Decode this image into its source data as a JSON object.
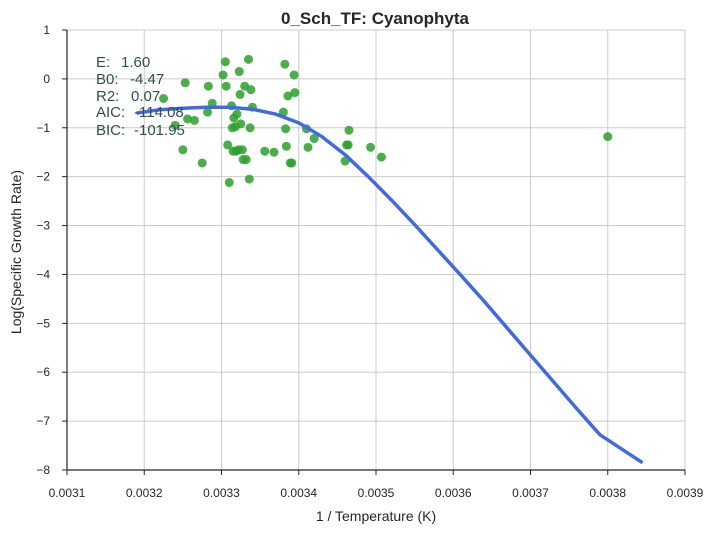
{
  "chart_data": {
    "type": "scatter",
    "title": "0_Sch_TF: Cyanophyta",
    "xlabel": "1 / Temperature (K)",
    "ylabel": "Log(Specific Growth Rate)",
    "xlim": [
      0.0031,
      0.0039
    ],
    "ylim": [
      -8,
      1
    ],
    "xticks": [
      "0.0031",
      "0.0032",
      "0.0033",
      "0.0034",
      "0.0035",
      "0.0036",
      "0.0037",
      "0.0038",
      "0.0039"
    ],
    "yticks": [
      "1",
      "0",
      "−1",
      "−2",
      "−3",
      "−4",
      "−5",
      "−6",
      "−7",
      "−8"
    ],
    "grid": true,
    "annotations": [
      {
        "label": "E:",
        "value": "1.60"
      },
      {
        "label": "B0:",
        "value": "-4.47"
      },
      {
        "label": "R2:",
        "value": "0.07"
      },
      {
        "label": "AIC:",
        "value": "-114.08"
      },
      {
        "label": "BIC:",
        "value": "-101.95"
      }
    ],
    "series": [
      {
        "kind": "scatter",
        "color": "#2ca02c",
        "points": [
          [
            0.003225,
            -0.4
          ],
          [
            0.00324,
            -0.95
          ],
          [
            0.00325,
            -1.45
          ],
          [
            0.003253,
            -0.08
          ],
          [
            0.003256,
            -0.82
          ],
          [
            0.003265,
            -0.85
          ],
          [
            0.003275,
            -1.72
          ],
          [
            0.003282,
            -0.68
          ],
          [
            0.003283,
            -0.15
          ],
          [
            0.003288,
            -0.5
          ],
          [
            0.003302,
            0.08
          ],
          [
            0.003305,
            0.35
          ],
          [
            0.003306,
            -0.15
          ],
          [
            0.003308,
            -1.35
          ],
          [
            0.00331,
            -2.12
          ],
          [
            0.003313,
            -0.55
          ],
          [
            0.003314,
            -1.0
          ],
          [
            0.003315,
            -1.48
          ],
          [
            0.003316,
            -0.8
          ],
          [
            0.003318,
            -0.98
          ],
          [
            0.003319,
            -1.48
          ],
          [
            0.00332,
            -0.72
          ],
          [
            0.003322,
            -1.45
          ],
          [
            0.003323,
            0.15
          ],
          [
            0.003324,
            -0.32
          ],
          [
            0.003325,
            -0.92
          ],
          [
            0.003327,
            -1.45
          ],
          [
            0.003328,
            -1.65
          ],
          [
            0.00333,
            -0.15
          ],
          [
            0.003332,
            -1.65
          ],
          [
            0.003335,
            0.4
          ],
          [
            0.003336,
            -2.05
          ],
          [
            0.003337,
            -1.0
          ],
          [
            0.003338,
            -0.22
          ],
          [
            0.00334,
            -0.58
          ],
          [
            0.003356,
            -1.48
          ],
          [
            0.003368,
            -1.5
          ],
          [
            0.00338,
            -0.68
          ],
          [
            0.003382,
            0.3
          ],
          [
            0.003383,
            -1.02
          ],
          [
            0.003384,
            -1.38
          ],
          [
            0.003386,
            -0.35
          ],
          [
            0.003389,
            -1.72
          ],
          [
            0.003391,
            -1.72
          ],
          [
            0.003394,
            0.08
          ],
          [
            0.003395,
            -0.28
          ],
          [
            0.00341,
            -1.02
          ],
          [
            0.003412,
            -1.4
          ],
          [
            0.00342,
            -1.22
          ],
          [
            0.00346,
            -1.68
          ],
          [
            0.003462,
            -1.35
          ],
          [
            0.003464,
            -1.35
          ],
          [
            0.003465,
            -1.05
          ],
          [
            0.003493,
            -1.4
          ],
          [
            0.003507,
            -1.6
          ],
          [
            0.0038,
            -1.18
          ]
        ]
      },
      {
        "kind": "line",
        "color": "#4169e1",
        "points": [
          [
            0.00319,
            -0.7
          ],
          [
            0.00322,
            -0.63
          ],
          [
            0.00325,
            -0.6
          ],
          [
            0.00328,
            -0.58
          ],
          [
            0.00331,
            -0.58
          ],
          [
            0.00334,
            -0.62
          ],
          [
            0.00337,
            -0.72
          ],
          [
            0.0034,
            -0.9
          ],
          [
            0.00343,
            -1.18
          ],
          [
            0.00346,
            -1.55
          ],
          [
            0.00349,
            -2.0
          ],
          [
            0.00352,
            -2.48
          ],
          [
            0.00355,
            -2.98
          ],
          [
            0.00358,
            -3.5
          ],
          [
            0.00361,
            -4.02
          ],
          [
            0.00364,
            -4.55
          ],
          [
            0.00367,
            -5.1
          ],
          [
            0.0037,
            -5.65
          ],
          [
            0.00373,
            -6.2
          ],
          [
            0.00376,
            -6.75
          ],
          [
            0.00379,
            -7.28
          ],
          [
            0.003845,
            -7.85
          ]
        ]
      }
    ]
  }
}
